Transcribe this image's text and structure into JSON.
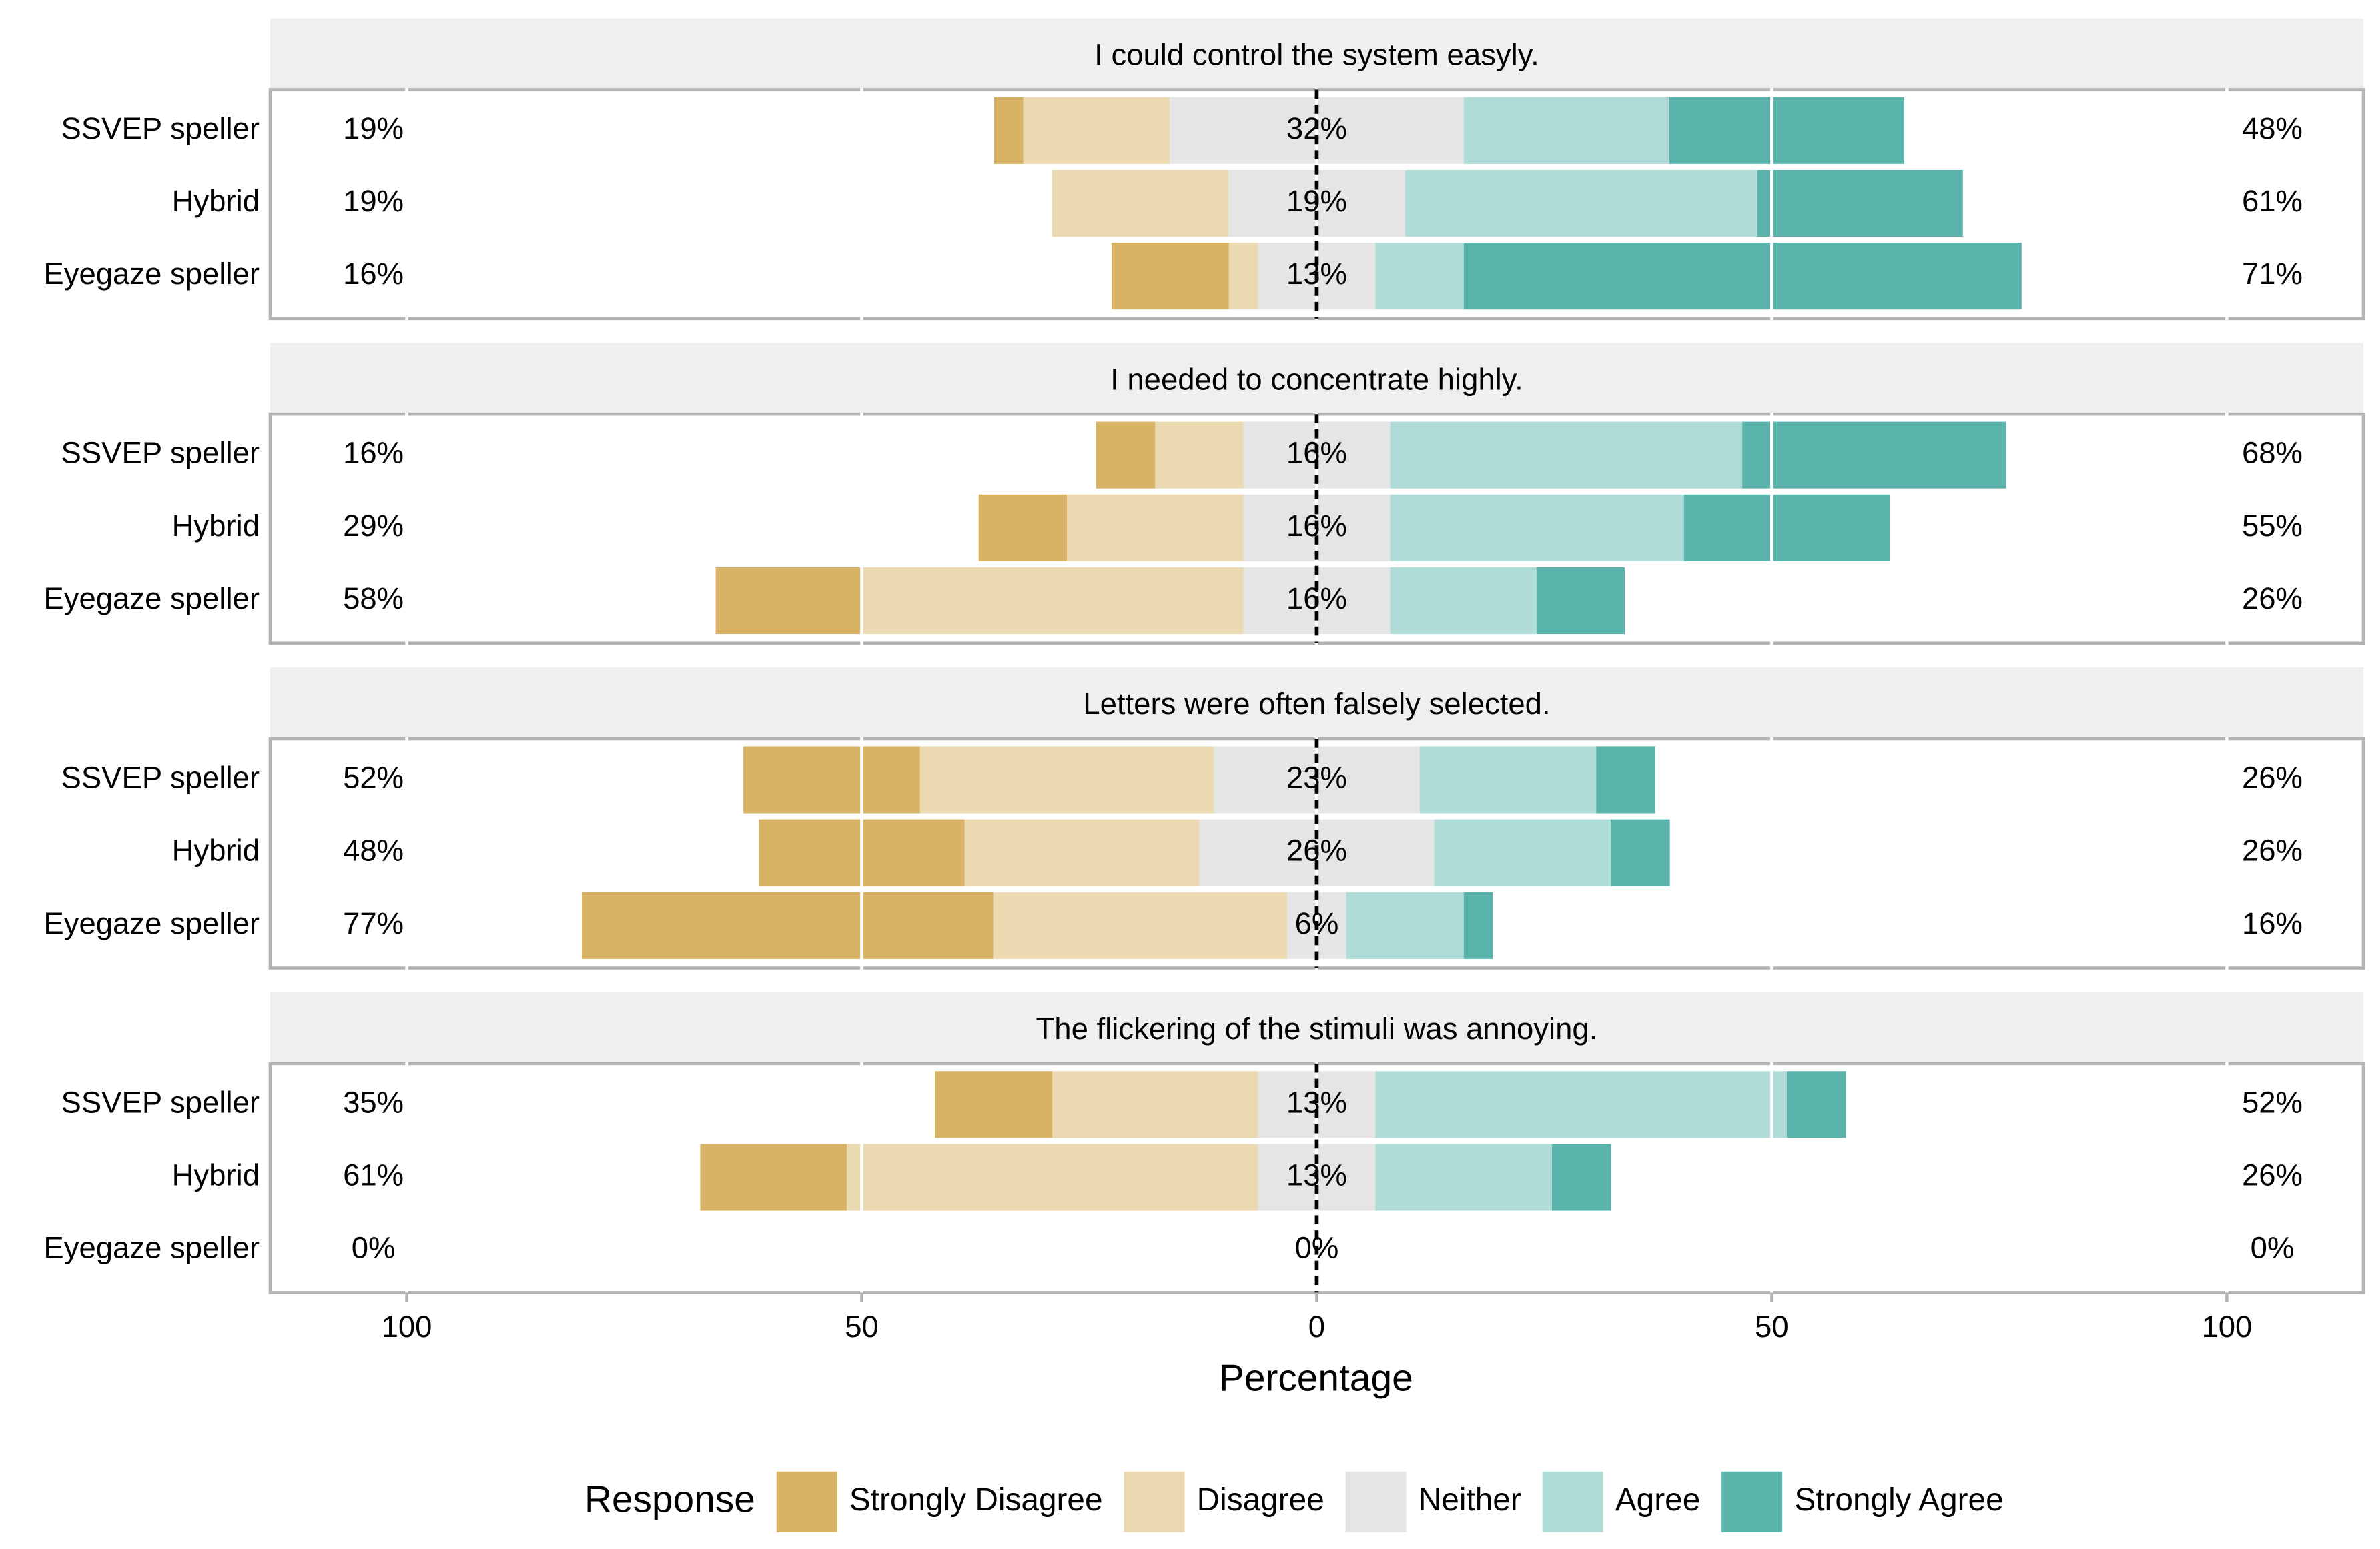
{
  "chart_data": {
    "type": "diverging-bar",
    "categories": [
      "SSVEP speller",
      "Hybrid",
      "Eyegaze speller"
    ],
    "series": [
      {
        "name": "Strongly Disagree",
        "color": "#d8b365"
      },
      {
        "name": "Disagree",
        "color": "#ebd9b2"
      },
      {
        "name": "Neither",
        "color": "#e5e5e5"
      },
      {
        "name": "Agree",
        "color": "#b0dcd8"
      },
      {
        "name": "Strongly Agree",
        "color": "#5ab4ac"
      }
    ],
    "facets": [
      {
        "title": "I could control the system easyly.",
        "values": [
          [
            3.2,
            0,
            12.9
          ],
          [
            16.1,
            19.4,
            3.2
          ],
          [
            32.3,
            19.4,
            12.9
          ],
          [
            22.6,
            38.7,
            9.7
          ],
          [
            25.8,
            22.6,
            61.3
          ]
        ],
        "neither_labels": [
          "32%",
          "19%",
          "13%"
        ],
        "low_labels": [
          "19%",
          "19%",
          "16%"
        ],
        "high_labels": [
          "48%",
          "61%",
          "71%"
        ]
      },
      {
        "title": "I needed to concentrate highly.",
        "values": [
          [
            6.5,
            9.7,
            16.1
          ],
          [
            9.7,
            19.4,
            41.9
          ],
          [
            16.1,
            16.1,
            16.1
          ],
          [
            38.7,
            32.3,
            16.1
          ],
          [
            29.0,
            22.6,
            9.7
          ]
        ],
        "neither_labels": [
          "16%",
          "16%",
          "16%"
        ],
        "low_labels": [
          "16%",
          "29%",
          "58%"
        ],
        "high_labels": [
          "68%",
          "55%",
          "26%"
        ]
      },
      {
        "title": "Letters were often falsely selected.",
        "values": [
          [
            19.4,
            22.6,
            45.2
          ],
          [
            32.3,
            25.8,
            32.3
          ],
          [
            22.6,
            25.8,
            6.5
          ],
          [
            19.4,
            19.4,
            12.9
          ],
          [
            6.5,
            6.5,
            3.2
          ]
        ],
        "neither_labels": [
          "23%",
          "26%",
          "6%"
        ],
        "low_labels": [
          "52%",
          "48%",
          "77%"
        ],
        "high_labels": [
          "26%",
          "26%",
          "16%"
        ]
      },
      {
        "title": "The flickering of the stimuli was annoying.",
        "values": [
          [
            12.9,
            16.1,
            0
          ],
          [
            22.6,
            45.2,
            0
          ],
          [
            12.9,
            12.9,
            0
          ],
          [
            45.2,
            19.4,
            0
          ],
          [
            6.5,
            6.5,
            0
          ]
        ],
        "neither_labels": [
          "13%",
          "13%",
          "0%"
        ],
        "low_labels": [
          "35%",
          "61%",
          "0%"
        ],
        "high_labels": [
          "52%",
          "26%",
          "0%"
        ]
      }
    ],
    "xlim": [
      -115,
      115
    ],
    "xticks": [
      {
        "value": -100,
        "label": "100"
      },
      {
        "value": -50,
        "label": "50"
      },
      0,
      50,
      100
    ],
    "xlabel": "Percentage",
    "legend_title": "Response",
    "legend": "bottom"
  }
}
